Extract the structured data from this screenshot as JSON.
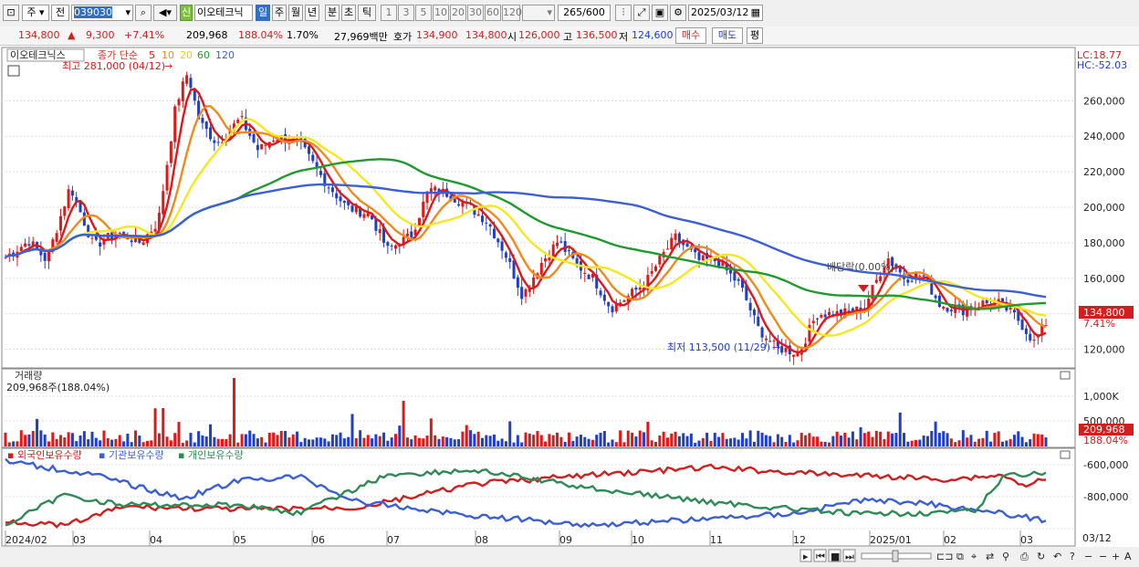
{
  "toolbar": {
    "type1": "주",
    "type2": "전",
    "code": "039030",
    "badge": "신",
    "name": "이오테크닉",
    "periods": [
      "일",
      "주",
      "월",
      "년",
      "분",
      "초",
      "틱"
    ],
    "minutes": [
      "1",
      "3",
      "5",
      "10",
      "20",
      "30",
      "60",
      "120"
    ],
    "count": "265",
    "count_max": "/600",
    "date": "2025/03/12"
  },
  "info": {
    "price": "134,800",
    "change_arrow": "▲",
    "change": "9,300",
    "change_pct": "+7.41%",
    "volume": "209,968",
    "volume_ratio": "188.04%",
    "turnover": "1.70%",
    "amount": "27,969백만",
    "quote_label": "호가",
    "ask": "134,900",
    "bid": "134,800",
    "open_label": "시",
    "open": "126,000",
    "high_label": "고",
    "high": "136,500",
    "low_label": "저",
    "low": "124,600",
    "buy": "매수",
    "sell": "매도",
    "avg": "평"
  },
  "price_panel": {
    "title": "이오테크닉스",
    "ma_label": "종가 단순",
    "ma_periods": [
      "5",
      "10",
      "20",
      "60",
      "120"
    ],
    "ma_colors": [
      "#e01818",
      "#f08a1a",
      "#f5e81e",
      "#1f9a2e",
      "#3a5fd8"
    ],
    "lc": "LC:18.77",
    "hc": "HC:-52.03",
    "max_label": "최고 281,000 (04/12)",
    "min_label": "최저 113,500 (11/29)",
    "div_label": "배당락(0.00%)",
    "y_ticks": [
      "260,000",
      "240,000",
      "220,000",
      "200,000",
      "180,000",
      "160,000",
      "140,000",
      "120,000"
    ],
    "current_price": "134,800",
    "current_pct": "7.41%"
  },
  "volume_panel": {
    "title": "거래량",
    "value_label": "209,968주(188.04%)",
    "y_ticks": [
      "1,000K",
      "500,000"
    ],
    "current": "209,968",
    "current_pct": "188.04%"
  },
  "holdings_panel": {
    "legend": [
      "외국인보유수량",
      "기관보유수량",
      "개인보유수량"
    ],
    "legend_colors": [
      "#d21e1e",
      "#3a5fd8",
      "#2e8b57"
    ],
    "y_ticks": [
      "-600,000",
      "-800,000"
    ]
  },
  "x_axis": [
    "2024/02",
    "03",
    "04",
    "05",
    "06",
    "07",
    "08",
    "09",
    "10",
    "11",
    "12",
    "2025/01",
    "02",
    "03"
  ],
  "x_axis_right": "03/12",
  "chart_data": {
    "type": "line",
    "title": "이오테크닉스",
    "price_series": [
      {
        "name": "5",
        "color": "#e01818"
      },
      {
        "name": "10",
        "color": "#f08a1a"
      },
      {
        "name": "20",
        "color": "#f5e81e"
      },
      {
        "name": "60",
        "color": "#1f9a2e"
      },
      {
        "name": "120",
        "color": "#3a5fd8"
      }
    ],
    "price_x": [
      "2024/02",
      "03",
      "04",
      "05",
      "06",
      "07",
      "08",
      "09",
      "10",
      "11",
      "12",
      "2025/01",
      "02",
      "03"
    ],
    "price_y_ticks": [
      120000,
      140000,
      160000,
      180000,
      200000,
      220000,
      240000,
      260000
    ],
    "ylim": [
      110000,
      290000
    ],
    "max_point": {
      "date": "04/12",
      "value": 281000
    },
    "min_point": {
      "date": "11/29",
      "value": 113500
    },
    "last_close": 134800,
    "last_volume": 209968
  }
}
